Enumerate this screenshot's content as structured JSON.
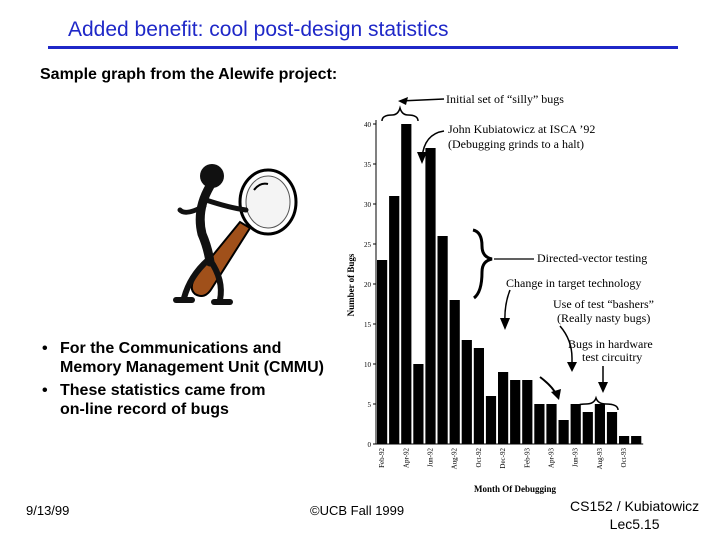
{
  "slide": {
    "title": "Added benefit: cool post-design statistics",
    "subtitle": "Sample graph from the Alewife project:",
    "bullets": [
      "For the Communications and Memory Management Unit (CMMU)",
      "These statistics came from on-line record of bugs"
    ],
    "bullet_lines": [
      [
        "For the Communications and",
        "Memory Management Unit (CMMU)"
      ],
      [
        "These statistics came from",
        "on-line record of bugs"
      ]
    ],
    "bullet_symbol": "•",
    "footer_left": "9/13/99",
    "footer_center": "©UCB Fall 1999",
    "footer_right_line1": "CS152 / Kubiatowicz",
    "footer_right_line2": "Lec5.15"
  },
  "colors": {
    "title": "#1f28c8",
    "bars": "#000000",
    "mascot_handle": "#a0501a"
  },
  "chart_data": {
    "type": "bar",
    "title": "",
    "xlabel": "Month Of Debugging",
    "ylabel": "Number of Bugs",
    "ylim": [
      0,
      40
    ],
    "yticks": [
      0,
      5,
      10,
      15,
      20,
      25,
      30,
      35,
      40
    ],
    "ytick_labels": [
      "0",
      "5",
      "10",
      "15",
      "20",
      "25",
      "30",
      "35",
      "40"
    ],
    "categories": [
      "Feb-92",
      "Mar-92",
      "Apr-92",
      "May-92",
      "Jun-92",
      "Jul-92",
      "Aug-92",
      "Sep-92",
      "Oct-92",
      "Nov-92",
      "Dec-92",
      "Jan-93",
      "Feb-93",
      "Mar-93",
      "Apr-93",
      "May-93",
      "Jun-93",
      "Jul-93",
      "Aug-93",
      "Sep-93",
      "Oct-93",
      "Nov-93"
    ],
    "xtick_labels": [
      "Feb-92",
      "Apr-92",
      "Jun-92",
      "Aug-92",
      "Oct-92",
      "Dec-92",
      "Feb-93",
      "Apr-93",
      "Jun-93",
      "Aug-93",
      "Oct-93"
    ],
    "values": [
      23,
      31,
      40,
      10,
      37,
      26,
      18,
      13,
      12,
      6,
      9,
      8,
      8,
      5,
      5,
      3,
      5,
      4,
      5,
      4,
      1,
      1
    ],
    "grid": false,
    "legend": "none",
    "annotations": [
      "Initial set of “silly” bugs",
      "John Kubiatowicz at ISCA ’92",
      "(Debugging grinds to a halt)",
      "Directed-vector testing",
      "Change in target technology",
      "Use of test “bashers”",
      "(Really nasty bugs)",
      "Bugs in hardware",
      "test circuitry"
    ]
  }
}
